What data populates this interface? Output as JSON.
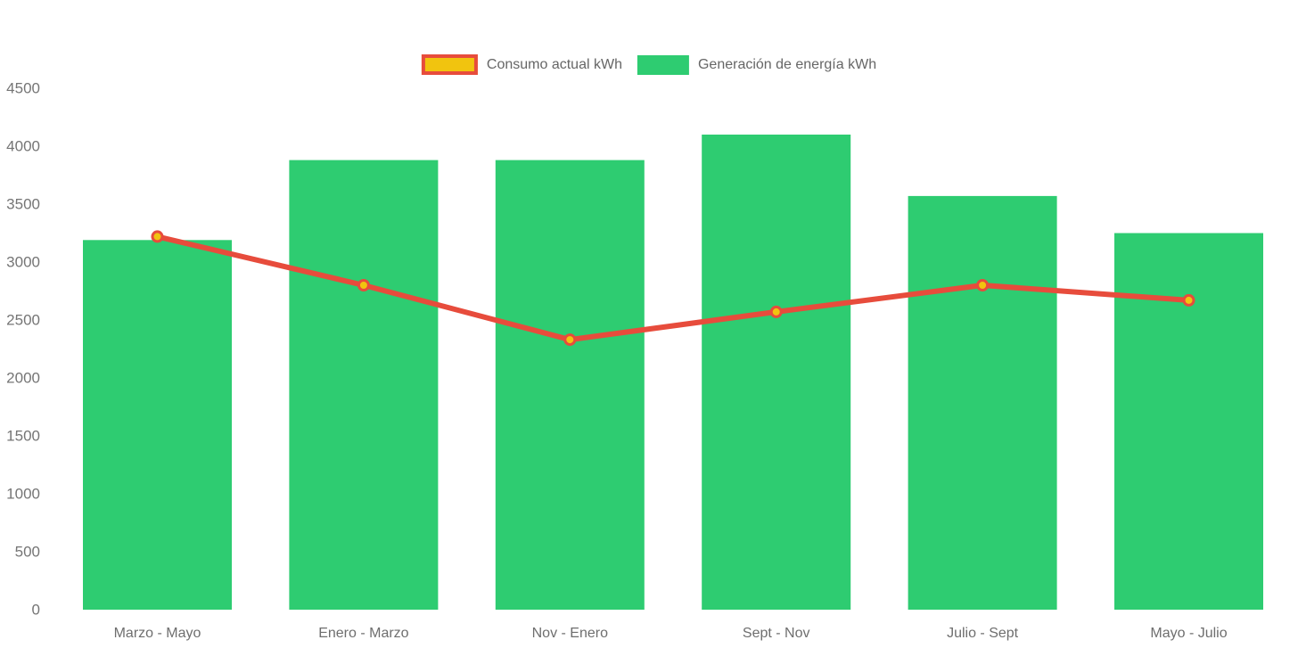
{
  "chart_data": {
    "type": "bar",
    "combo": "bar+line",
    "categories": [
      "Marzo - Mayo",
      "Enero - Marzo",
      "Nov - Enero",
      "Sept - Nov",
      "Julio - Sept",
      "Mayo - Julio"
    ],
    "series": [
      {
        "name": "Consumo actual kWh",
        "type": "line",
        "values": [
          3220,
          2800,
          2330,
          2570,
          2800,
          2670
        ],
        "line_color": "#e74c3c",
        "marker_fill": "#f1c40f",
        "marker_border": "#e74c3c"
      },
      {
        "name": "Generación de energía kWh",
        "type": "bar",
        "values": [
          3190,
          3880,
          3880,
          4100,
          3570,
          3250
        ],
        "color": "#2ecc71"
      }
    ],
    "title": "",
    "xlabel": "",
    "ylabel": "",
    "ylim": [
      0,
      4500
    ],
    "ytick_step": 500,
    "ytick_labels": [
      "0",
      "500",
      "1000",
      "1500",
      "2000",
      "2500",
      "3000",
      "3500",
      "4000",
      "4500"
    ],
    "grid": false,
    "legend_position": "top-center",
    "axis_text_color": "#757575",
    "background_color": "#ffffff"
  }
}
